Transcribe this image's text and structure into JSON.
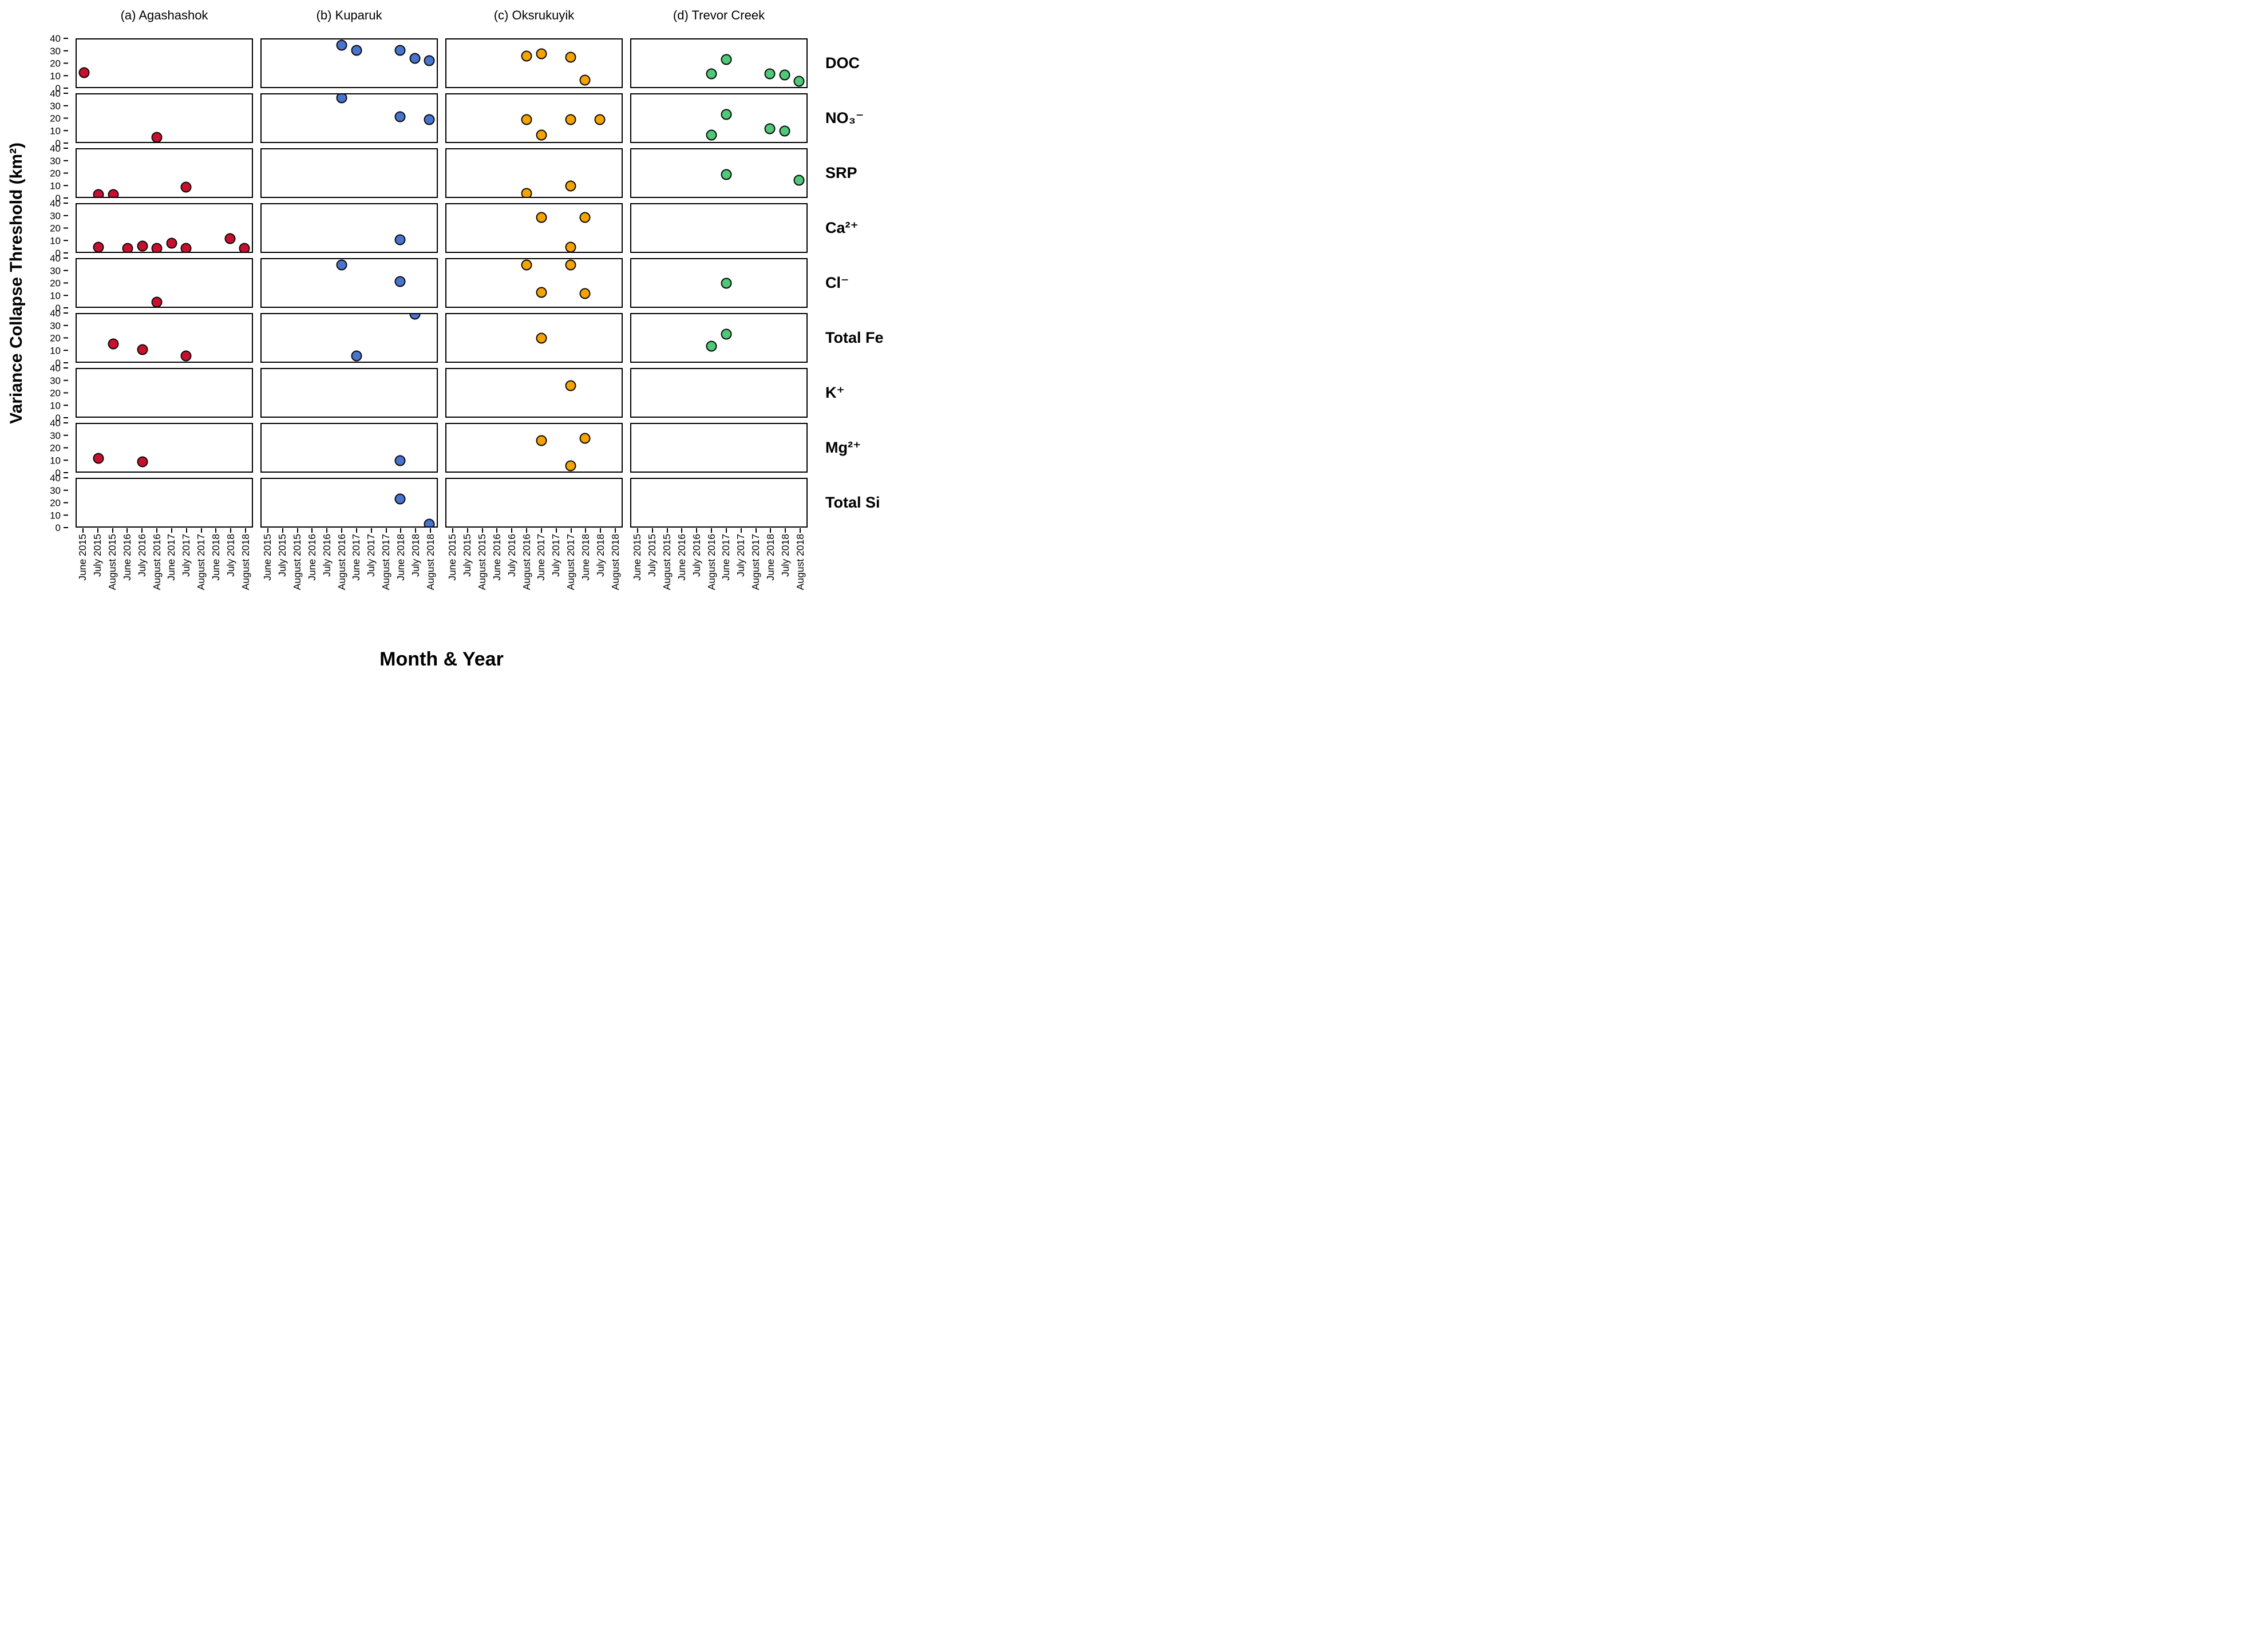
{
  "chart_data": {
    "type": "scatter",
    "title": "",
    "xlabel": "Month & Year",
    "ylabel": "Variance Collapse Threshold (km²)",
    "ylim": [
      0,
      40
    ],
    "yticks": [
      40,
      30,
      20,
      10,
      0
    ],
    "grid": "off",
    "legend": "none",
    "x_categories": [
      "June 2015",
      "July 2015",
      "August 2015",
      "June 2016",
      "July 2016",
      "August 2016",
      "June 2017",
      "July 2017",
      "August 2017",
      "June 2018",
      "July 2018",
      "August 2018"
    ],
    "columns": [
      {
        "key": "agashashok",
        "label": "(a)  Agashashok",
        "color": "#C8102E"
      },
      {
        "key": "kuparuk",
        "label": "(b)  Kuparuk",
        "color": "#4874CF"
      },
      {
        "key": "oksrukuyik",
        "label": "(c)  Oksrukuyik",
        "color": "#F5A302"
      },
      {
        "key": "trevor_creek",
        "label": "(d)  Trevor Creek",
        "color": "#4FC878"
      }
    ],
    "rows": [
      {
        "key": "doc",
        "label": "DOC"
      },
      {
        "key": "no3",
        "label": "NO₃⁻"
      },
      {
        "key": "srp",
        "label": "SRP"
      },
      {
        "key": "ca",
        "label": "Ca²⁺"
      },
      {
        "key": "cl",
        "label": "Cl⁻"
      },
      {
        "key": "fe",
        "label": "Total Fe"
      },
      {
        "key": "k",
        "label": "K⁺"
      },
      {
        "key": "mg",
        "label": "Mg²⁺"
      },
      {
        "key": "si",
        "label": "Total Si"
      }
    ],
    "points": {
      "agashashok": {
        "doc": [
          {
            "x": "June 2015",
            "y": 12
          }
        ],
        "no3": [
          {
            "x": "August 2016",
            "y": 4
          }
        ],
        "srp": [
          {
            "x": "July 2015",
            "y": 2
          },
          {
            "x": "August 2015",
            "y": 2
          },
          {
            "x": "July 2017",
            "y": 8
          }
        ],
        "ca": [
          {
            "x": "July 2015",
            "y": 4
          },
          {
            "x": "June 2016",
            "y": 3
          },
          {
            "x": "July 2016",
            "y": 5
          },
          {
            "x": "August 2016",
            "y": 3
          },
          {
            "x": "June 2017",
            "y": 7
          },
          {
            "x": "July 2017",
            "y": 3
          },
          {
            "x": "July 2018",
            "y": 11
          },
          {
            "x": "August 2018",
            "y": 3
          }
        ],
        "cl": [
          {
            "x": "August 2016",
            "y": 4
          }
        ],
        "fe": [
          {
            "x": "August 2015",
            "y": 15
          },
          {
            "x": "July 2016",
            "y": 10
          },
          {
            "x": "July 2017",
            "y": 5
          }
        ],
        "k": [],
        "mg": [
          {
            "x": "July 2015",
            "y": 11
          },
          {
            "x": "July 2016",
            "y": 8
          }
        ],
        "si": []
      },
      "kuparuk": {
        "doc": [
          {
            "x": "August 2016",
            "y": 35
          },
          {
            "x": "June 2017",
            "y": 31
          },
          {
            "x": "June 2018",
            "y": 31
          },
          {
            "x": "July 2018",
            "y": 24
          },
          {
            "x": "August 2018",
            "y": 22
          }
        ],
        "no3": [
          {
            "x": "August 2016",
            "y": 37
          },
          {
            "x": "June 2018",
            "y": 21
          },
          {
            "x": "August 2018",
            "y": 19
          }
        ],
        "srp": [],
        "ca": [
          {
            "x": "June 2018",
            "y": 10
          }
        ],
        "cl": [
          {
            "x": "August 2016",
            "y": 35
          },
          {
            "x": "June 2018",
            "y": 21
          }
        ],
        "fe": [
          {
            "x": "June 2017",
            "y": 5
          },
          {
            "x": "July 2018",
            "y": 40
          }
        ],
        "k": [],
        "mg": [
          {
            "x": "June 2018",
            "y": 9
          }
        ],
        "si": [
          {
            "x": "June 2018",
            "y": 23
          },
          {
            "x": "August 2018",
            "y": 2
          }
        ]
      },
      "oksrukuyik": {
        "doc": [
          {
            "x": "August 2016",
            "y": 26
          },
          {
            "x": "June 2017",
            "y": 28
          },
          {
            "x": "August 2017",
            "y": 25
          },
          {
            "x": "June 2018",
            "y": 6
          }
        ],
        "no3": [
          {
            "x": "August 2016",
            "y": 19
          },
          {
            "x": "June 2017",
            "y": 6
          },
          {
            "x": "August 2017",
            "y": 19
          },
          {
            "x": "July 2018",
            "y": 19
          }
        ],
        "srp": [
          {
            "x": "August 2016",
            "y": 3
          },
          {
            "x": "August 2017",
            "y": 9
          }
        ],
        "ca": [
          {
            "x": "June 2017",
            "y": 29
          },
          {
            "x": "August 2017",
            "y": 4
          },
          {
            "x": "June 2018",
            "y": 29
          }
        ],
        "cl": [
          {
            "x": "August 2016",
            "y": 35
          },
          {
            "x": "June 2017",
            "y": 12
          },
          {
            "x": "August 2017",
            "y": 35
          },
          {
            "x": "June 2018",
            "y": 11
          }
        ],
        "fe": [
          {
            "x": "June 2017",
            "y": 20
          }
        ],
        "k": [
          {
            "x": "August 2017",
            "y": 26
          }
        ],
        "mg": [
          {
            "x": "June 2017",
            "y": 26
          },
          {
            "x": "August 2017",
            "y": 5
          },
          {
            "x": "June 2018",
            "y": 28
          }
        ],
        "si": []
      },
      "trevor_creek": {
        "doc": [
          {
            "x": "August 2016",
            "y": 11
          },
          {
            "x": "June 2017",
            "y": 23
          },
          {
            "x": "June 2018",
            "y": 11
          },
          {
            "x": "July 2018",
            "y": 10
          },
          {
            "x": "August 2018",
            "y": 5
          }
        ],
        "no3": [
          {
            "x": "August 2016",
            "y": 6
          },
          {
            "x": "June 2017",
            "y": 23
          },
          {
            "x": "June 2018",
            "y": 11
          },
          {
            "x": "July 2018",
            "y": 9
          }
        ],
        "srp": [
          {
            "x": "June 2017",
            "y": 19
          },
          {
            "x": "August 2018",
            "y": 14
          }
        ],
        "ca": [],
        "cl": [
          {
            "x": "June 2017",
            "y": 20
          }
        ],
        "fe": [
          {
            "x": "August 2016",
            "y": 13
          },
          {
            "x": "June 2017",
            "y": 23
          }
        ],
        "k": [],
        "mg": [],
        "si": []
      }
    }
  }
}
